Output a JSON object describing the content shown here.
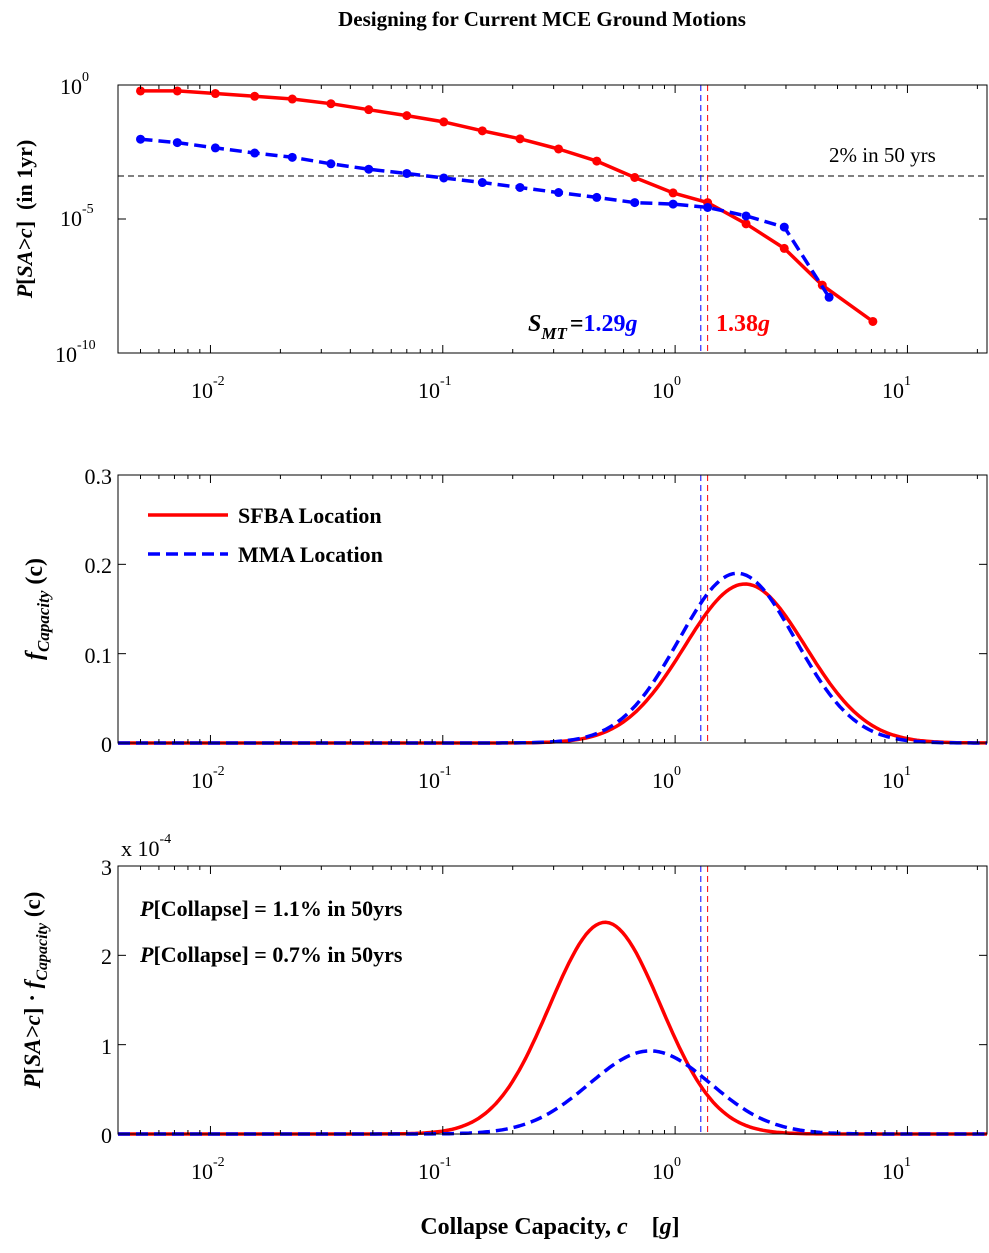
{
  "title": "Designing for Current MCE Ground Motions",
  "xlabel": "Collapse Capacity, c [g]",
  "xlabel_main": "Collapse Capacity, ",
  "xlabel_var": "c",
  "xlabel_unit_open": "[",
  "xlabel_unit": "g",
  "xlabel_unit_close": "]",
  "colors": {
    "sfba": "#ff0000",
    "mma": "#0000ff",
    "axis": "#000000"
  },
  "chart_data": [
    {
      "type": "line",
      "panel": "hazard",
      "x_scale": "log",
      "y_scale": "log",
      "xlim": [
        0.004,
        22
      ],
      "ylim": [
        1e-10,
        1
      ],
      "ylabel": "P[SA>c]  (in 1yr)",
      "ylabel_parts": {
        "p": "P",
        "open": "[",
        "var": "SA>c",
        "close": "]",
        "rest": "  (in 1yr)"
      },
      "x_ticks": [
        {
          "base": "10",
          "exp": "-2",
          "value": 0.01
        },
        {
          "base": "10",
          "exp": "-1",
          "value": 0.1
        },
        {
          "base": "10",
          "exp": "0",
          "value": 1
        },
        {
          "base": "10",
          "exp": "1",
          "value": 10
        }
      ],
      "y_ticks": [
        {
          "base": "10",
          "exp": "0",
          "value": 1
        },
        {
          "base": "10",
          "exp": "-5",
          "value": 1e-05
        },
        {
          "base": "10",
          "exp": "-10",
          "value": 1e-10
        }
      ],
      "series": [
        {
          "color": "#ff0000",
          "dash": "solid",
          "markers": true,
          "points": [
            [
              0.005,
              0.6
            ],
            [
              0.0072,
              0.6
            ],
            [
              0.0105,
              0.48
            ],
            [
              0.0155,
              0.38
            ],
            [
              0.0225,
              0.3
            ],
            [
              0.033,
              0.2
            ],
            [
              0.048,
              0.12
            ],
            [
              0.07,
              0.072
            ],
            [
              0.101,
              0.042
            ],
            [
              0.148,
              0.0195
            ],
            [
              0.215,
              0.0098
            ],
            [
              0.315,
              0.0041
            ],
            [
              0.46,
              0.00145
            ],
            [
              0.67,
              0.000355
            ],
            [
              0.98,
              9.4e-05
            ],
            [
              1.38,
              4.1e-05
            ],
            [
              2.02,
              6.6e-06
            ],
            [
              2.95,
              8e-07
            ],
            [
              4.3,
              3.4e-08
            ],
            [
              7.1,
              1.5e-09
            ]
          ]
        },
        {
          "color": "#0000ff",
          "dash": "dashed",
          "markers": true,
          "points": [
            [
              0.005,
              0.0095
            ],
            [
              0.0072,
              0.0071
            ],
            [
              0.0105,
              0.0045
            ],
            [
              0.0155,
              0.0029
            ],
            [
              0.0225,
              0.002
            ],
            [
              0.033,
              0.00115
            ],
            [
              0.048,
              0.00072
            ],
            [
              0.07,
              0.0005
            ],
            [
              0.101,
              0.00034
            ],
            [
              0.148,
              0.00023
            ],
            [
              0.215,
              0.00015
            ],
            [
              0.315,
              9.7e-05
            ],
            [
              0.46,
              6.4e-05
            ],
            [
              0.67,
              4.1e-05
            ],
            [
              0.98,
              3.6e-05
            ],
            [
              1.38,
              2.7e-05
            ],
            [
              2.02,
              1.3e-05
            ],
            [
              2.95,
              5e-06
            ],
            [
              4.6,
              1.2e-08
            ]
          ]
        }
      ],
      "reference_line": {
        "y": 0.000404,
        "label": "2% in 50 yrs"
      },
      "vlines": [
        {
          "x": 1.29,
          "color": "#0000ff"
        },
        {
          "x": 1.38,
          "color": "#ff0000"
        }
      ],
      "annotation": {
        "prefix": "S",
        "sub": "MT",
        "eq": "=",
        "mma_value": "1.29",
        "sfba_value": "1.38",
        "unit": "g"
      }
    },
    {
      "type": "line",
      "panel": "pdf",
      "x_scale": "log",
      "xlim": [
        0.004,
        22
      ],
      "ylim": [
        0,
        0.3
      ],
      "ylabel": "f_Capacity (c)",
      "ylabel_parts": {
        "f": "f",
        "sub": "Capacity",
        "arg": "(c)"
      },
      "x_ticks": [
        {
          "base": "10",
          "exp": "-2",
          "value": 0.01
        },
        {
          "base": "10",
          "exp": "-1",
          "value": 0.1
        },
        {
          "base": "10",
          "exp": "0",
          "value": 1
        },
        {
          "base": "10",
          "exp": "1",
          "value": 10
        }
      ],
      "y_ticks": [
        {
          "label": "0",
          "value": 0
        },
        {
          "label": "0.1",
          "value": 0.1
        },
        {
          "label": "0.2",
          "value": 0.2
        },
        {
          "label": "0.3",
          "value": 0.3
        }
      ],
      "legend": [
        {
          "name": "SFBA Location",
          "color": "#ff0000",
          "dash": "solid"
        },
        {
          "name": "MMA Location",
          "color": "#0000ff",
          "dash": "dashed"
        }
      ],
      "series": [
        {
          "name": "SFBA Location",
          "color": "#ff0000",
          "dash": "solid",
          "lognormal": {
            "median": 2.0,
            "beta": 0.6,
            "peak": 0.178
          }
        },
        {
          "name": "MMA Location",
          "color": "#0000ff",
          "dash": "dashed",
          "lognormal": {
            "median": 1.85,
            "beta": 0.58,
            "peak": 0.19
          }
        }
      ],
      "vlines": [
        {
          "x": 1.29,
          "color": "#0000ff"
        },
        {
          "x": 1.38,
          "color": "#ff0000"
        }
      ]
    },
    {
      "type": "line",
      "panel": "integrand",
      "x_scale": "log",
      "xlim": [
        0.004,
        22
      ],
      "ylim": [
        0,
        0.0003
      ],
      "y_multiplier": {
        "text": "x 10",
        "exp": "-4"
      },
      "ylabel": "P[SA>c] · f_Capacity (c)",
      "ylabel_parts": {
        "p": "P",
        "open": "[",
        "var": "SA>c",
        "close": "]",
        "dot": " · ",
        "f": "f",
        "sub": "Capacity",
        "arg": "(c)"
      },
      "x_ticks": [
        {
          "base": "10",
          "exp": "-2",
          "value": 0.01
        },
        {
          "base": "10",
          "exp": "-1",
          "value": 0.1
        },
        {
          "base": "10",
          "exp": "0",
          "value": 1
        },
        {
          "base": "10",
          "exp": "1",
          "value": 10
        }
      ],
      "y_ticks": [
        {
          "label": "0",
          "value": 0
        },
        {
          "label": "1",
          "value": 0.0001
        },
        {
          "label": "2",
          "value": 0.0002
        },
        {
          "label": "3",
          "value": 0.0003
        }
      ],
      "annotations": [
        {
          "p": "P",
          "text": "[Collapse] = 1.1% in 50yrs",
          "color": "#ff0000"
        },
        {
          "p": "P",
          "text": "[Collapse] = 0.7% in 50yrs",
          "color": "#0000ff"
        }
      ],
      "series": [
        {
          "color": "#ff0000",
          "dash": "solid",
          "lognormal": {
            "median": 0.5,
            "beta": 0.55,
            "peak": 0.000237
          }
        },
        {
          "color": "#0000ff",
          "dash": "dashed",
          "lognormal": {
            "median": 0.78,
            "beta": 0.6,
            "peak": 9.3e-05
          }
        }
      ],
      "vlines": [
        {
          "x": 1.29,
          "color": "#0000ff"
        },
        {
          "x": 1.38,
          "color": "#ff0000"
        }
      ]
    }
  ]
}
